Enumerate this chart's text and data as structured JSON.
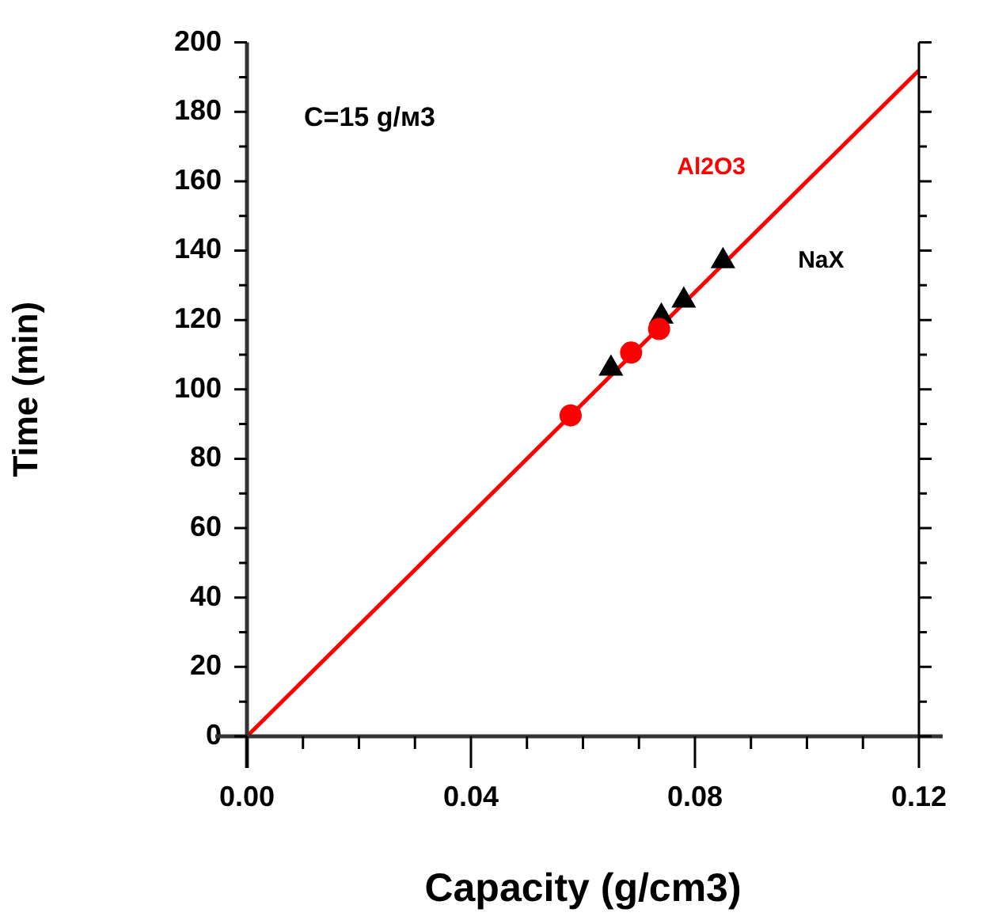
{
  "chart_data": {
    "type": "scatter",
    "xlabel": "Capacity (g/cm3)",
    "ylabel": "Time (min)",
    "annotations": [
      "C=15 g/м3"
    ],
    "series": [
      {
        "type": "line",
        "color": "#ff0000",
        "x": [
          0,
          0.12
        ],
        "values": [
          0,
          192
        ],
        "marker": "none"
      },
      {
        "name": "Al2O3",
        "color": "#ff0000",
        "x": [
          0.0578,
          0.0686,
          0.0736
        ],
        "values": [
          92.5,
          110.6,
          117.4
        ],
        "marker": "circle"
      },
      {
        "name": "NaX",
        "color": "#000000",
        "x": [
          0.065,
          0.074,
          0.078,
          0.085
        ],
        "values": [
          106,
          121,
          125.6,
          137
        ],
        "marker": "triangle"
      }
    ],
    "xlim": [
      0,
      0.12
    ],
    "xticks": [
      {
        "value": 0,
        "label": "0.00"
      },
      {
        "value": 0.01,
        "label": null
      },
      {
        "value": 0.02,
        "label": null
      },
      {
        "value": 0.03,
        "label": null
      },
      {
        "value": 0.04,
        "label": "0.04"
      },
      {
        "value": 0.05,
        "label": null
      },
      {
        "value": 0.06,
        "label": null
      },
      {
        "value": 0.07,
        "label": null
      },
      {
        "value": 0.08,
        "label": "0.08"
      },
      {
        "value": 0.09,
        "label": null
      },
      {
        "value": 0.1,
        "label": null
      },
      {
        "value": 0.11,
        "label": null
      },
      {
        "value": 0.12,
        "label": "0.12"
      }
    ],
    "ylim": [
      0,
      200
    ],
    "yticks": [
      0,
      {
        "value": 10,
        "label": null
      },
      20,
      {
        "value": 30,
        "label": null
      },
      40,
      {
        "value": 50,
        "label": null
      },
      60,
      {
        "value": 70,
        "label": null
      },
      80,
      {
        "value": 90,
        "label": null
      },
      100,
      {
        "value": 110,
        "label": null
      },
      120,
      {
        "value": 130,
        "label": null
      },
      140,
      {
        "value": 150,
        "label": null
      },
      160,
      {
        "value": 170,
        "label": null
      },
      180,
      {
        "value": 190,
        "label": null
      },
      200
    ],
    "grid": false,
    "legend": false
  }
}
